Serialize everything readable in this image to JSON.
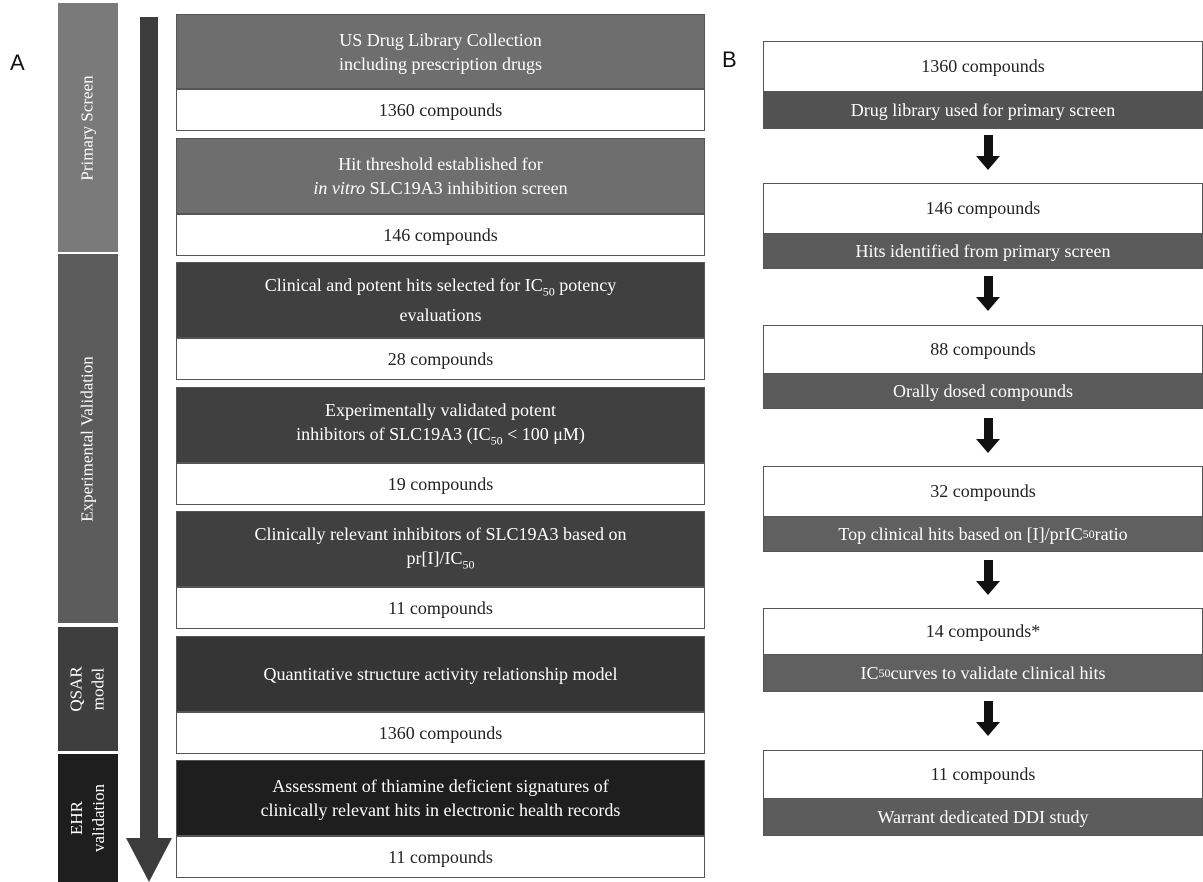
{
  "panel_a": {
    "letter": "A",
    "stages": {
      "primary": "Primary Screen",
      "experimental": "Experimental Validation",
      "qsar_1": "QSAR",
      "qsar_2": "model",
      "ehr_1": "EHR",
      "ehr_2": "validation"
    },
    "steps": [
      {
        "line1": "US Drug Library Collection",
        "line2": "including prescription drugs",
        "count": "1360 compounds"
      },
      {
        "line1": "Hit threshold established for",
        "line2_italic": "in vitro",
        "line2_rest": " SLC19A3 inhibition screen",
        "count": "146 compounds"
      },
      {
        "line1_pre": "Clinical and potent hits selected for IC",
        "line1_sub": "50",
        "line1_post": " potency",
        "line2": "evaluations",
        "count": "28 compounds"
      },
      {
        "line1": "Experimentally validated potent",
        "line2_pre": "inhibitors of SLC19A3 (IC",
        "line2_sub": "50",
        "line2_post": " < 100 μM)",
        "count": "19 compounds"
      },
      {
        "line1": "Clinically relevant inhibitors of SLC19A3 based on",
        "line2_pre": "pr[I]/IC",
        "line2_sub": "50",
        "count": "11 compounds"
      },
      {
        "line1": "Quantitative structure activity relationship model",
        "count": "1360 compounds"
      },
      {
        "line1": "Assessment of thiamine deficient signatures of",
        "line2": "clinically relevant hits in electronic health records",
        "count": "11 compounds"
      }
    ]
  },
  "panel_b": {
    "letter": "B",
    "steps": [
      {
        "count": "1360 compounds",
        "desc": "Drug library used for primary screen"
      },
      {
        "count": "146 compounds",
        "desc": "Hits identified from primary screen"
      },
      {
        "count": "88 compounds",
        "desc": "Orally dosed compounds"
      },
      {
        "count": "32 compounds",
        "desc_pre": "Top clinical hits based on [I]/prIC",
        "desc_sub": "50",
        "desc_post": " ratio"
      },
      {
        "count": "14 compounds*",
        "desc_pre": "IC",
        "desc_sub": "50",
        "desc_post": " curves to validate clinical hits"
      },
      {
        "count": "11 compounds",
        "desc": "Warrant dedicated DDI study"
      }
    ]
  },
  "colors": {
    "primary_stage": "#7a7a7a",
    "experimental_stage": "#5c5c5c",
    "qsar_stage": "#3e3e3e",
    "ehr_stage": "#1e1e1e",
    "step_light": "#6e6e6e",
    "step_dark": "#404040",
    "step_darker": "#353535",
    "step_darkest": "#1e1e1e",
    "arrow": "#3c3c3c"
  }
}
